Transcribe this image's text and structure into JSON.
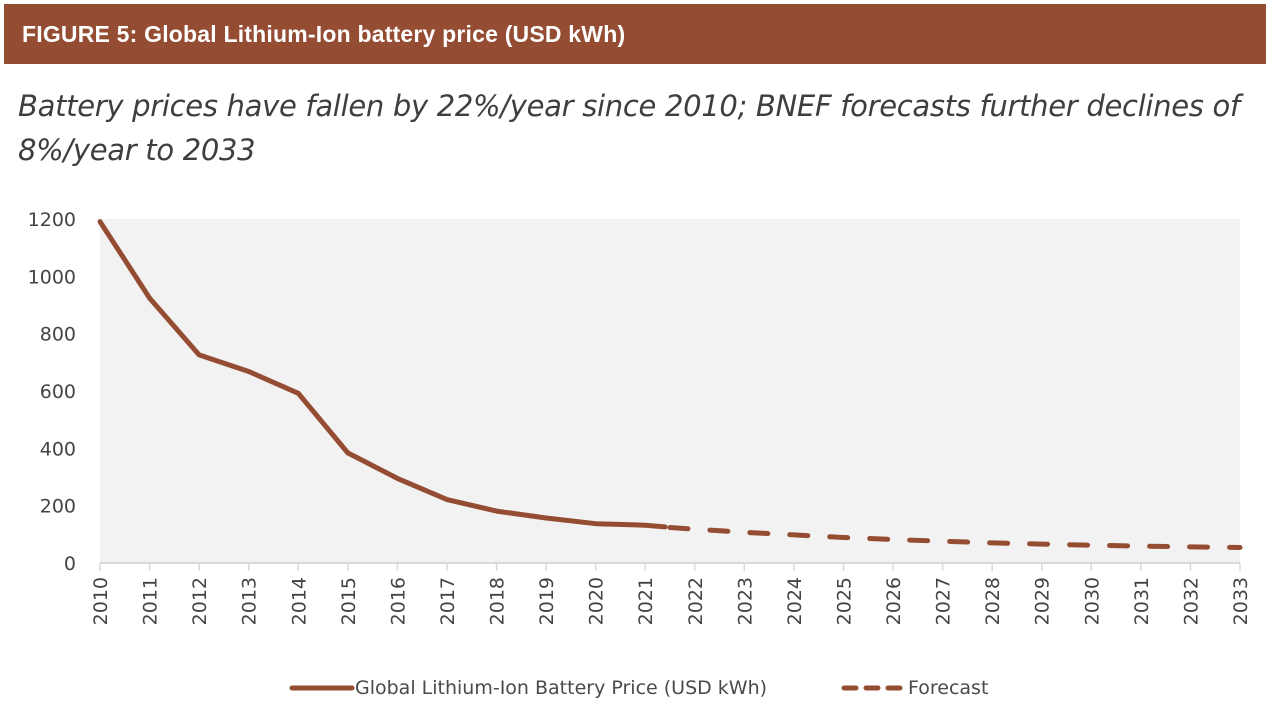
{
  "header": {
    "figure_title": "FIGURE 5: Global Lithium-Ion battery price (USD kWh)",
    "subtitle": "Battery prices have fallen by 22%/year since 2010; BNEF forecasts further declines of 8%/year to 2033"
  },
  "colors": {
    "banner": "#944d32",
    "series": "#944d32",
    "plot_background": "#f2f2f2",
    "axis": "#d9d9d9",
    "text": "#444444"
  },
  "chart_data": {
    "type": "line",
    "title": "Global Lithium-Ion battery price (USD kWh)",
    "xlabel": "",
    "ylabel": "",
    "ylim": [
      0,
      1200
    ],
    "yticks": [
      0,
      200,
      400,
      600,
      800,
      1000,
      1200
    ],
    "x": [
      2010,
      2011,
      2012,
      2013,
      2014,
      2015,
      2016,
      2017,
      2018,
      2019,
      2020,
      2021,
      2022,
      2023,
      2024,
      2025,
      2026,
      2027,
      2028,
      2029,
      2030,
      2031,
      2032,
      2033
    ],
    "grid": false,
    "legend_position": "bottom",
    "series": [
      {
        "name": "Global Lithium-Ion Battery Price (USD kWh)",
        "style": "solid",
        "x": [
          2010,
          2011,
          2012,
          2013,
          2014,
          2015,
          2016,
          2017,
          2018,
          2019,
          2020,
          2021,
          2021.4
        ],
        "values": [
          1191,
          924,
          726,
          668,
          592,
          384,
          295,
          221,
          181,
          157,
          137,
          132,
          126
        ]
      },
      {
        "name": "Forecast",
        "style": "dashed",
        "x": [
          2021.5,
          2022,
          2023,
          2024,
          2025,
          2026,
          2027,
          2028,
          2029,
          2030,
          2031,
          2032,
          2033
        ],
        "values": [
          124,
          118,
          107,
          98,
          89,
          82,
          76,
          70,
          66,
          62,
          59,
          56,
          54
        ]
      }
    ]
  }
}
